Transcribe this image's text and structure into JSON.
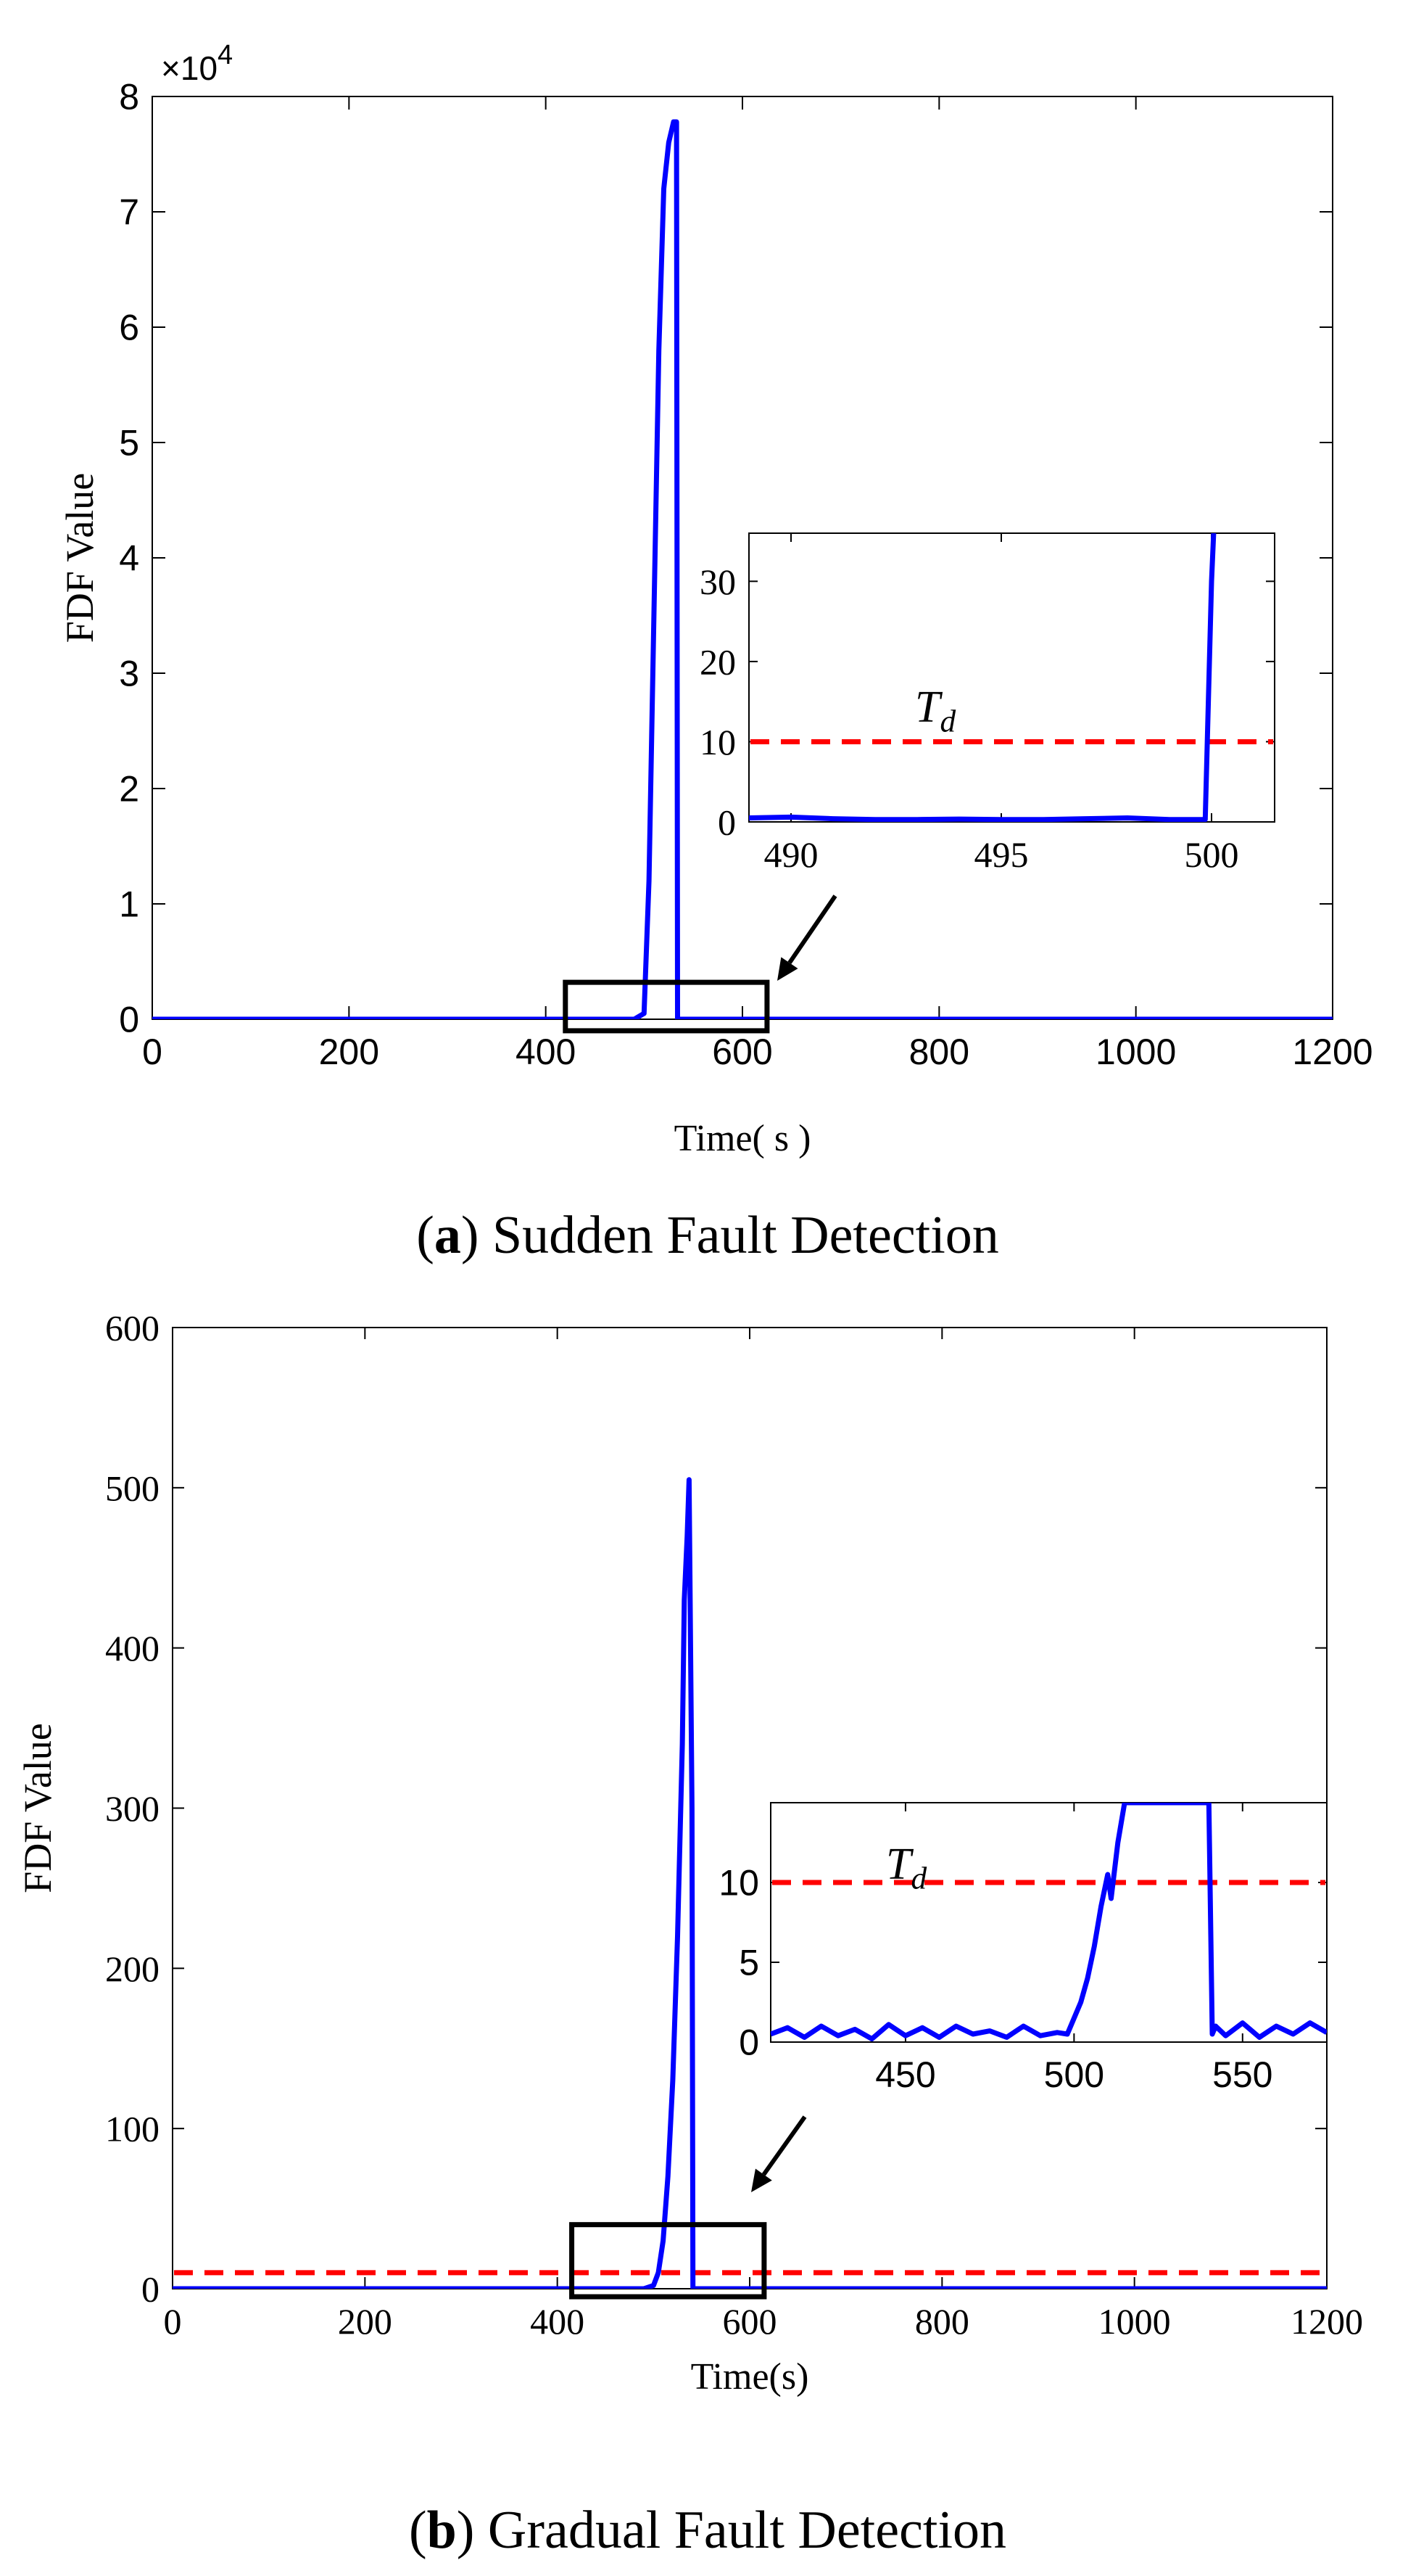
{
  "colors": {
    "series": "#0000ff",
    "threshold": "#ff0000",
    "box": "#000000"
  },
  "chart_data": [
    {
      "type": "line",
      "panel_letter": "a",
      "caption": "Sudden Fault Detection",
      "xlabel": "Time( s )",
      "ylabel": "FDF Value",
      "y_multiplier": "×10^4",
      "y_multiplier_base": "×10",
      "y_multiplier_exp": "4",
      "xlim": [
        0,
        1200
      ],
      "ylim": [
        0,
        80000
      ],
      "xticks": [
        0,
        200,
        400,
        600,
        800,
        1000,
        1200
      ],
      "yticks": [
        0,
        10000,
        20000,
        30000,
        40000,
        50000,
        60000,
        70000,
        80000
      ],
      "ytick_labels": [
        "0",
        "1",
        "2",
        "3",
        "4",
        "5",
        "6",
        "7",
        "8"
      ],
      "series": [
        {
          "x": [
            0,
            480,
            490,
            500,
            505,
            510,
            515,
            520,
            525,
            530,
            533,
            534,
            1200
          ],
          "y": [
            0,
            0,
            0,
            500,
            12000,
            35000,
            58000,
            72000,
            76000,
            77800,
            77800,
            0,
            0
          ]
        }
      ],
      "zoom_box": {
        "x": [
          420,
          625
        ],
        "y": [
          -1000,
          3200
        ]
      },
      "inset": {
        "xlim": [
          489,
          501.5
        ],
        "ylim": [
          0,
          36
        ],
        "xticks": [
          490,
          495,
          500
        ],
        "yticks": [
          0,
          10,
          20,
          30
        ],
        "threshold": 10,
        "threshold_label_main": "T",
        "threshold_label_sub": "d",
        "series": [
          {
            "x": [
              489,
              490,
              491,
              492,
              493,
              494,
              495,
              496,
              497,
              498,
              499,
              499.85,
              499.85,
              500,
              500.05
            ],
            "y": [
              0.5,
              0.6,
              0.4,
              0.3,
              0.3,
              0.35,
              0.3,
              0.3,
              0.4,
              0.5,
              0.3,
              0.3,
              0.3,
              30,
              36
            ]
          }
        ]
      }
    },
    {
      "type": "line",
      "panel_letter": "b",
      "caption": "Gradual Fault Detection",
      "xlabel": "Time(s)",
      "ylabel": "FDF Value",
      "xlim": [
        0,
        1200
      ],
      "ylim": [
        0,
        600
      ],
      "xticks": [
        0,
        200,
        400,
        600,
        800,
        1000,
        1200
      ],
      "yticks": [
        0,
        100,
        200,
        300,
        400,
        500,
        600
      ],
      "threshold": 10,
      "series": [
        {
          "x": [
            0,
            490,
            500,
            505,
            510,
            515,
            520,
            525,
            530,
            532,
            535,
            537,
            540,
            541,
            1200
          ],
          "y": [
            0,
            0,
            2,
            10,
            30,
            70,
            130,
            220,
            340,
            430,
            470,
            505,
            300,
            0,
            0
          ]
        }
      ],
      "zoom_box": {
        "x": [
          415,
          615
        ],
        "y": [
          -5,
          40
        ]
      },
      "inset": {
        "xlim": [
          410,
          575
        ],
        "ylim": [
          0,
          15
        ],
        "xticks": [
          450,
          500,
          550
        ],
        "yticks": [
          0,
          5,
          10
        ],
        "threshold": 10,
        "threshold_label_main": "T",
        "threshold_label_sub": "d",
        "series": [
          {
            "x": [
              410,
              415,
              420,
              425,
              430,
              435,
              440,
              445,
              450,
              455,
              460,
              465,
              470,
              475,
              480,
              485,
              490,
              495,
              498,
              500,
              502,
              504,
              506,
              508,
              510,
              511,
              513,
              515,
              540,
              541,
              542,
              545,
              550,
              555,
              560,
              565,
              570,
              575
            ],
            "y": [
              0.5,
              0.9,
              0.3,
              1.0,
              0.4,
              0.8,
              0.2,
              1.1,
              0.4,
              0.9,
              0.3,
              1.0,
              0.5,
              0.7,
              0.3,
              1.0,
              0.4,
              0.6,
              0.5,
              1.5,
              2.5,
              4,
              6,
              8.5,
              10.5,
              9,
              12.5,
              15,
              15,
              0.5,
              1.0,
              0.4,
              1.2,
              0.3,
              1.0,
              0.5,
              1.2,
              0.6
            ]
          }
        ]
      }
    }
  ]
}
